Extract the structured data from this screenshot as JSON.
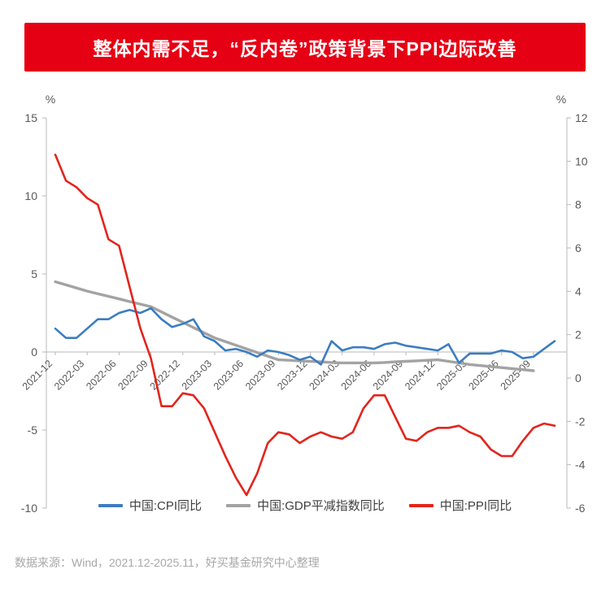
{
  "banner": {
    "bg_color": "#e60014"
  },
  "chart_data": {
    "type": "line",
    "title": "整体内需不足，“反内卷”政策背景下PPI边际改善",
    "x": [
      "2021-12",
      "2022-01",
      "2022-02",
      "2022-03",
      "2022-04",
      "2022-05",
      "2022-06",
      "2022-07",
      "2022-08",
      "2022-09",
      "2022-10",
      "2022-11",
      "2022-12",
      "2023-01",
      "2023-02",
      "2023-03",
      "2023-04",
      "2023-05",
      "2023-06",
      "2023-07",
      "2023-08",
      "2023-09",
      "2023-10",
      "2023-11",
      "2023-12",
      "2024-01",
      "2024-02",
      "2024-03",
      "2024-04",
      "2024-05",
      "2024-06",
      "2024-07",
      "2024-08",
      "2024-09",
      "2024-10",
      "2024-11",
      "2024-12",
      "2025-01",
      "2025-02",
      "2025-03",
      "2025-04",
      "2025-05",
      "2025-06",
      "2025-07",
      "2025-08",
      "2025-09",
      "2025-10",
      "2025-11"
    ],
    "x_tick_step": 3,
    "left_axis": {
      "unit": "%",
      "ticks": [
        15,
        10,
        5,
        0,
        -5,
        -10
      ],
      "range": [
        -10,
        15
      ]
    },
    "right_axis": {
      "unit": "%",
      "ticks": [
        12,
        10,
        8,
        6,
        4,
        2,
        0,
        -2,
        -4,
        -6
      ],
      "range": [
        -6,
        12
      ]
    },
    "grid": false,
    "legend_position": "bottom",
    "series": [
      {
        "name": "中国:CPI同比",
        "axis": "left",
        "color": "#3c7dc0",
        "values": [
          1.5,
          0.9,
          0.9,
          1.5,
          2.1,
          2.1,
          2.5,
          2.7,
          2.5,
          2.8,
          2.1,
          1.6,
          1.8,
          2.1,
          1.0,
          0.7,
          0.1,
          0.2,
          0.0,
          -0.3,
          0.1,
          0.0,
          -0.2,
          -0.5,
          -0.3,
          -0.8,
          0.7,
          0.1,
          0.3,
          0.3,
          0.2,
          0.5,
          0.6,
          0.4,
          0.3,
          0.2,
          0.1,
          0.5,
          -0.7,
          -0.1,
          -0.1,
          -0.1,
          0.1,
          0.0,
          -0.4,
          -0.3,
          0.2,
          0.7
        ]
      },
      {
        "name": "中国:GDP平减指数同比",
        "axis": "left",
        "color": "#a3a3a3",
        "values": [
          4.5,
          4.3,
          4.1,
          3.9,
          3.73,
          3.57,
          3.4,
          3.23,
          3.07,
          2.9,
          2.57,
          2.23,
          1.9,
          1.57,
          1.23,
          0.9,
          0.67,
          0.43,
          0.2,
          -0.03,
          -0.27,
          -0.5,
          -0.53,
          -0.57,
          -0.6,
          -0.63,
          -0.67,
          -0.7,
          -0.7,
          -0.7,
          -0.7,
          -0.67,
          -0.63,
          -0.6,
          -0.57,
          -0.53,
          -0.5,
          -0.6,
          -0.7,
          -0.8,
          -0.87,
          -0.93,
          -1.0,
          -1.07,
          -1.13,
          -1.2,
          null,
          null
        ]
      },
      {
        "name": "中国:PPI同比",
        "axis": "right",
        "color": "#e2251c",
        "values": [
          10.3,
          9.1,
          8.8,
          8.3,
          8.0,
          6.4,
          6.1,
          4.2,
          2.3,
          0.9,
          -1.3,
          -1.3,
          -0.7,
          -0.8,
          -1.4,
          -2.5,
          -3.6,
          -4.6,
          -5.4,
          -4.4,
          -3.0,
          -2.5,
          -2.6,
          -3.0,
          -2.7,
          -2.5,
          -2.7,
          -2.8,
          -2.5,
          -1.4,
          -0.8,
          -0.8,
          -1.8,
          -2.8,
          -2.9,
          -2.5,
          -2.3,
          -2.3,
          -2.2,
          -2.5,
          -2.7,
          -3.3,
          -3.6,
          -3.6,
          -2.9,
          -2.3,
          -2.1,
          -2.2
        ]
      }
    ]
  },
  "footer": {
    "text": "数据来源：Wind，2021.12-2025.11，好买基金研究中心整理"
  }
}
